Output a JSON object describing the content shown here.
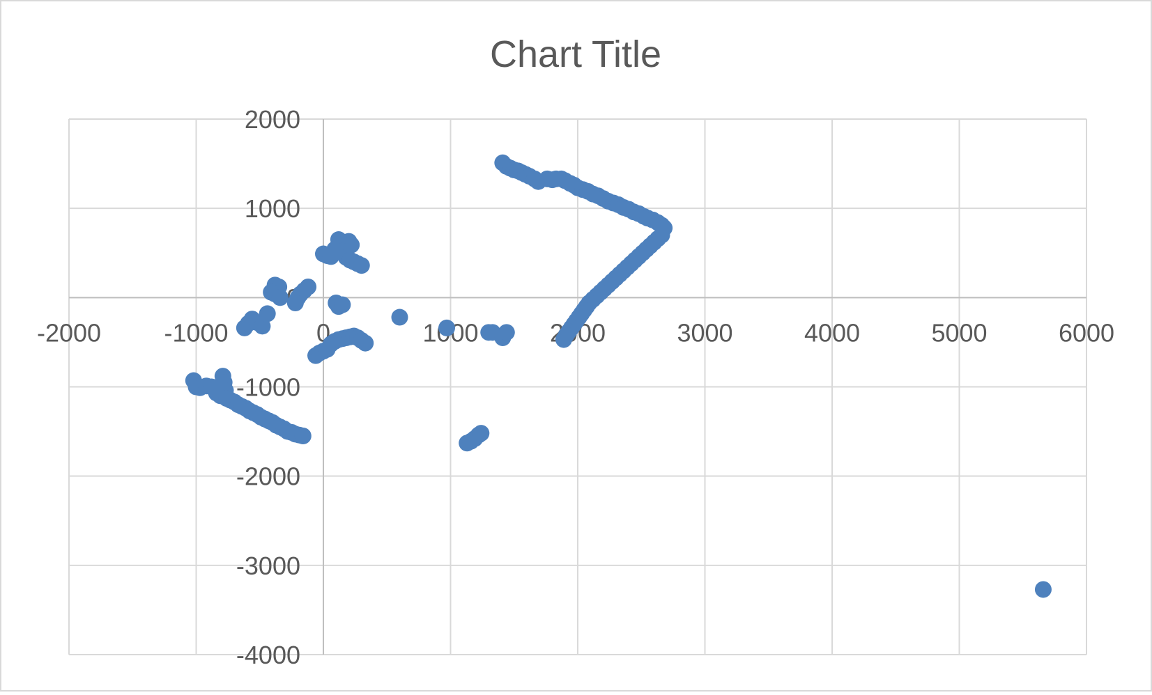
{
  "chart_data": {
    "type": "scatter",
    "title": "Chart Title",
    "xlim": [
      -2000,
      6000
    ],
    "ylim": [
      -4000,
      2000
    ],
    "x_ticks": [
      "-2000",
      "-1000",
      "0",
      "1000",
      "2000",
      "3000",
      "4000",
      "5000",
      "6000"
    ],
    "y_ticks": [
      "2000",
      "1000",
      "0",
      "-1000",
      "-2000",
      "-3000",
      "-4000"
    ],
    "grid": true,
    "marker_color": "#4E81BD",
    "gridline_color": "#D9D9D9",
    "axis_line_color": "#BFBFBF",
    "text_color": "#595959",
    "series": [
      {
        "points": [
          [
            1410,
            1510
          ],
          [
            1440,
            1470
          ],
          [
            1470,
            1450
          ],
          [
            1500,
            1430
          ],
          [
            1530,
            1420
          ],
          [
            1560,
            1400
          ],
          [
            1590,
            1380
          ],
          [
            1620,
            1360
          ],
          [
            1660,
            1330
          ],
          [
            1690,
            1300
          ],
          [
            1760,
            1330
          ],
          [
            1800,
            1320
          ],
          [
            1830,
            1330
          ],
          [
            1870,
            1330
          ],
          [
            1900,
            1310
          ],
          [
            1940,
            1280
          ],
          [
            1970,
            1260
          ],
          [
            2000,
            1230
          ],
          [
            2040,
            1210
          ],
          [
            2080,
            1190
          ],
          [
            2120,
            1160
          ],
          [
            2160,
            1140
          ],
          [
            2200,
            1110
          ],
          [
            2240,
            1080
          ],
          [
            2280,
            1060
          ],
          [
            2320,
            1040
          ],
          [
            2360,
            1010
          ],
          [
            2400,
            990
          ],
          [
            2440,
            960
          ],
          [
            2480,
            940
          ],
          [
            2520,
            910
          ],
          [
            2550,
            890
          ],
          [
            2590,
            870
          ],
          [
            2630,
            840
          ],
          [
            2660,
            810
          ],
          [
            2680,
            780
          ],
          [
            2660,
            700
          ],
          [
            2630,
            660
          ],
          [
            2600,
            620
          ],
          [
            2570,
            580
          ],
          [
            2540,
            540
          ],
          [
            2510,
            500
          ],
          [
            2480,
            460
          ],
          [
            2450,
            420
          ],
          [
            2420,
            380
          ],
          [
            2390,
            340
          ],
          [
            2360,
            300
          ],
          [
            2330,
            260
          ],
          [
            2300,
            220
          ],
          [
            2270,
            180
          ],
          [
            2240,
            140
          ],
          [
            2210,
            100
          ],
          [
            2180,
            60
          ],
          [
            2150,
            20
          ],
          [
            2120,
            -20
          ],
          [
            2090,
            -60
          ],
          [
            2070,
            -100
          ],
          [
            2050,
            -140
          ],
          [
            2030,
            -180
          ],
          [
            2010,
            -220
          ],
          [
            1990,
            -260
          ],
          [
            1970,
            -300
          ],
          [
            1950,
            -340
          ],
          [
            1930,
            -380
          ],
          [
            1910,
            -420
          ],
          [
            1890,
            -470
          ],
          [
            120,
            650
          ],
          [
            200,
            630
          ],
          [
            160,
            600
          ],
          [
            220,
            590
          ],
          [
            90,
            540
          ],
          [
            150,
            520
          ],
          [
            180,
            450
          ],
          [
            210,
            420
          ],
          [
            240,
            400
          ],
          [
            270,
            380
          ],
          [
            300,
            360
          ],
          [
            0,
            490
          ],
          [
            30,
            470
          ],
          [
            60,
            460
          ],
          [
            -380,
            140
          ],
          [
            -350,
            120
          ],
          [
            -410,
            60
          ],
          [
            -380,
            40
          ],
          [
            -340,
            0
          ],
          [
            -120,
            120
          ],
          [
            -150,
            80
          ],
          [
            -180,
            40
          ],
          [
            -200,
            0
          ],
          [
            -220,
            -60
          ],
          [
            -620,
            -340
          ],
          [
            -590,
            -290
          ],
          [
            -560,
            -240
          ],
          [
            -520,
            -280
          ],
          [
            -480,
            -320
          ],
          [
            -440,
            -180
          ],
          [
            100,
            -60
          ],
          [
            120,
            -100
          ],
          [
            150,
            -80
          ],
          [
            -60,
            -650
          ],
          [
            -30,
            -620
          ],
          [
            0,
            -600
          ],
          [
            30,
            -580
          ],
          [
            60,
            -520
          ],
          [
            90,
            -490
          ],
          [
            120,
            -470
          ],
          [
            150,
            -460
          ],
          [
            180,
            -450
          ],
          [
            210,
            -440
          ],
          [
            240,
            -430
          ],
          [
            270,
            -450
          ],
          [
            300,
            -480
          ],
          [
            330,
            -510
          ],
          [
            600,
            -220
          ],
          [
            970,
            -340
          ],
          [
            1300,
            -390
          ],
          [
            1330,
            -390
          ],
          [
            1410,
            -450
          ],
          [
            1440,
            -390
          ],
          [
            1130,
            -1630
          ],
          [
            1160,
            -1610
          ],
          [
            1190,
            -1580
          ],
          [
            1220,
            -1540
          ],
          [
            1240,
            -1520
          ],
          [
            -1020,
            -930
          ],
          [
            -1000,
            -1000
          ],
          [
            -970,
            -1010
          ],
          [
            -920,
            -990
          ],
          [
            -880,
            -1000
          ],
          [
            -840,
            -1070
          ],
          [
            -810,
            -1100
          ],
          [
            -790,
            -880
          ],
          [
            -780,
            -950
          ],
          [
            -770,
            -1040
          ],
          [
            -760,
            -1130
          ],
          [
            -730,
            -1150
          ],
          [
            -700,
            -1170
          ],
          [
            -670,
            -1200
          ],
          [
            -640,
            -1220
          ],
          [
            -610,
            -1240
          ],
          [
            -580,
            -1270
          ],
          [
            -550,
            -1290
          ],
          [
            -520,
            -1310
          ],
          [
            -490,
            -1340
          ],
          [
            -460,
            -1360
          ],
          [
            -430,
            -1380
          ],
          [
            -400,
            -1400
          ],
          [
            -370,
            -1430
          ],
          [
            -340,
            -1450
          ],
          [
            -310,
            -1470
          ],
          [
            -280,
            -1500
          ],
          [
            -250,
            -1510
          ],
          [
            -220,
            -1530
          ],
          [
            -190,
            -1540
          ],
          [
            -160,
            -1550
          ],
          [
            5660,
            -3270
          ]
        ]
      }
    ]
  }
}
